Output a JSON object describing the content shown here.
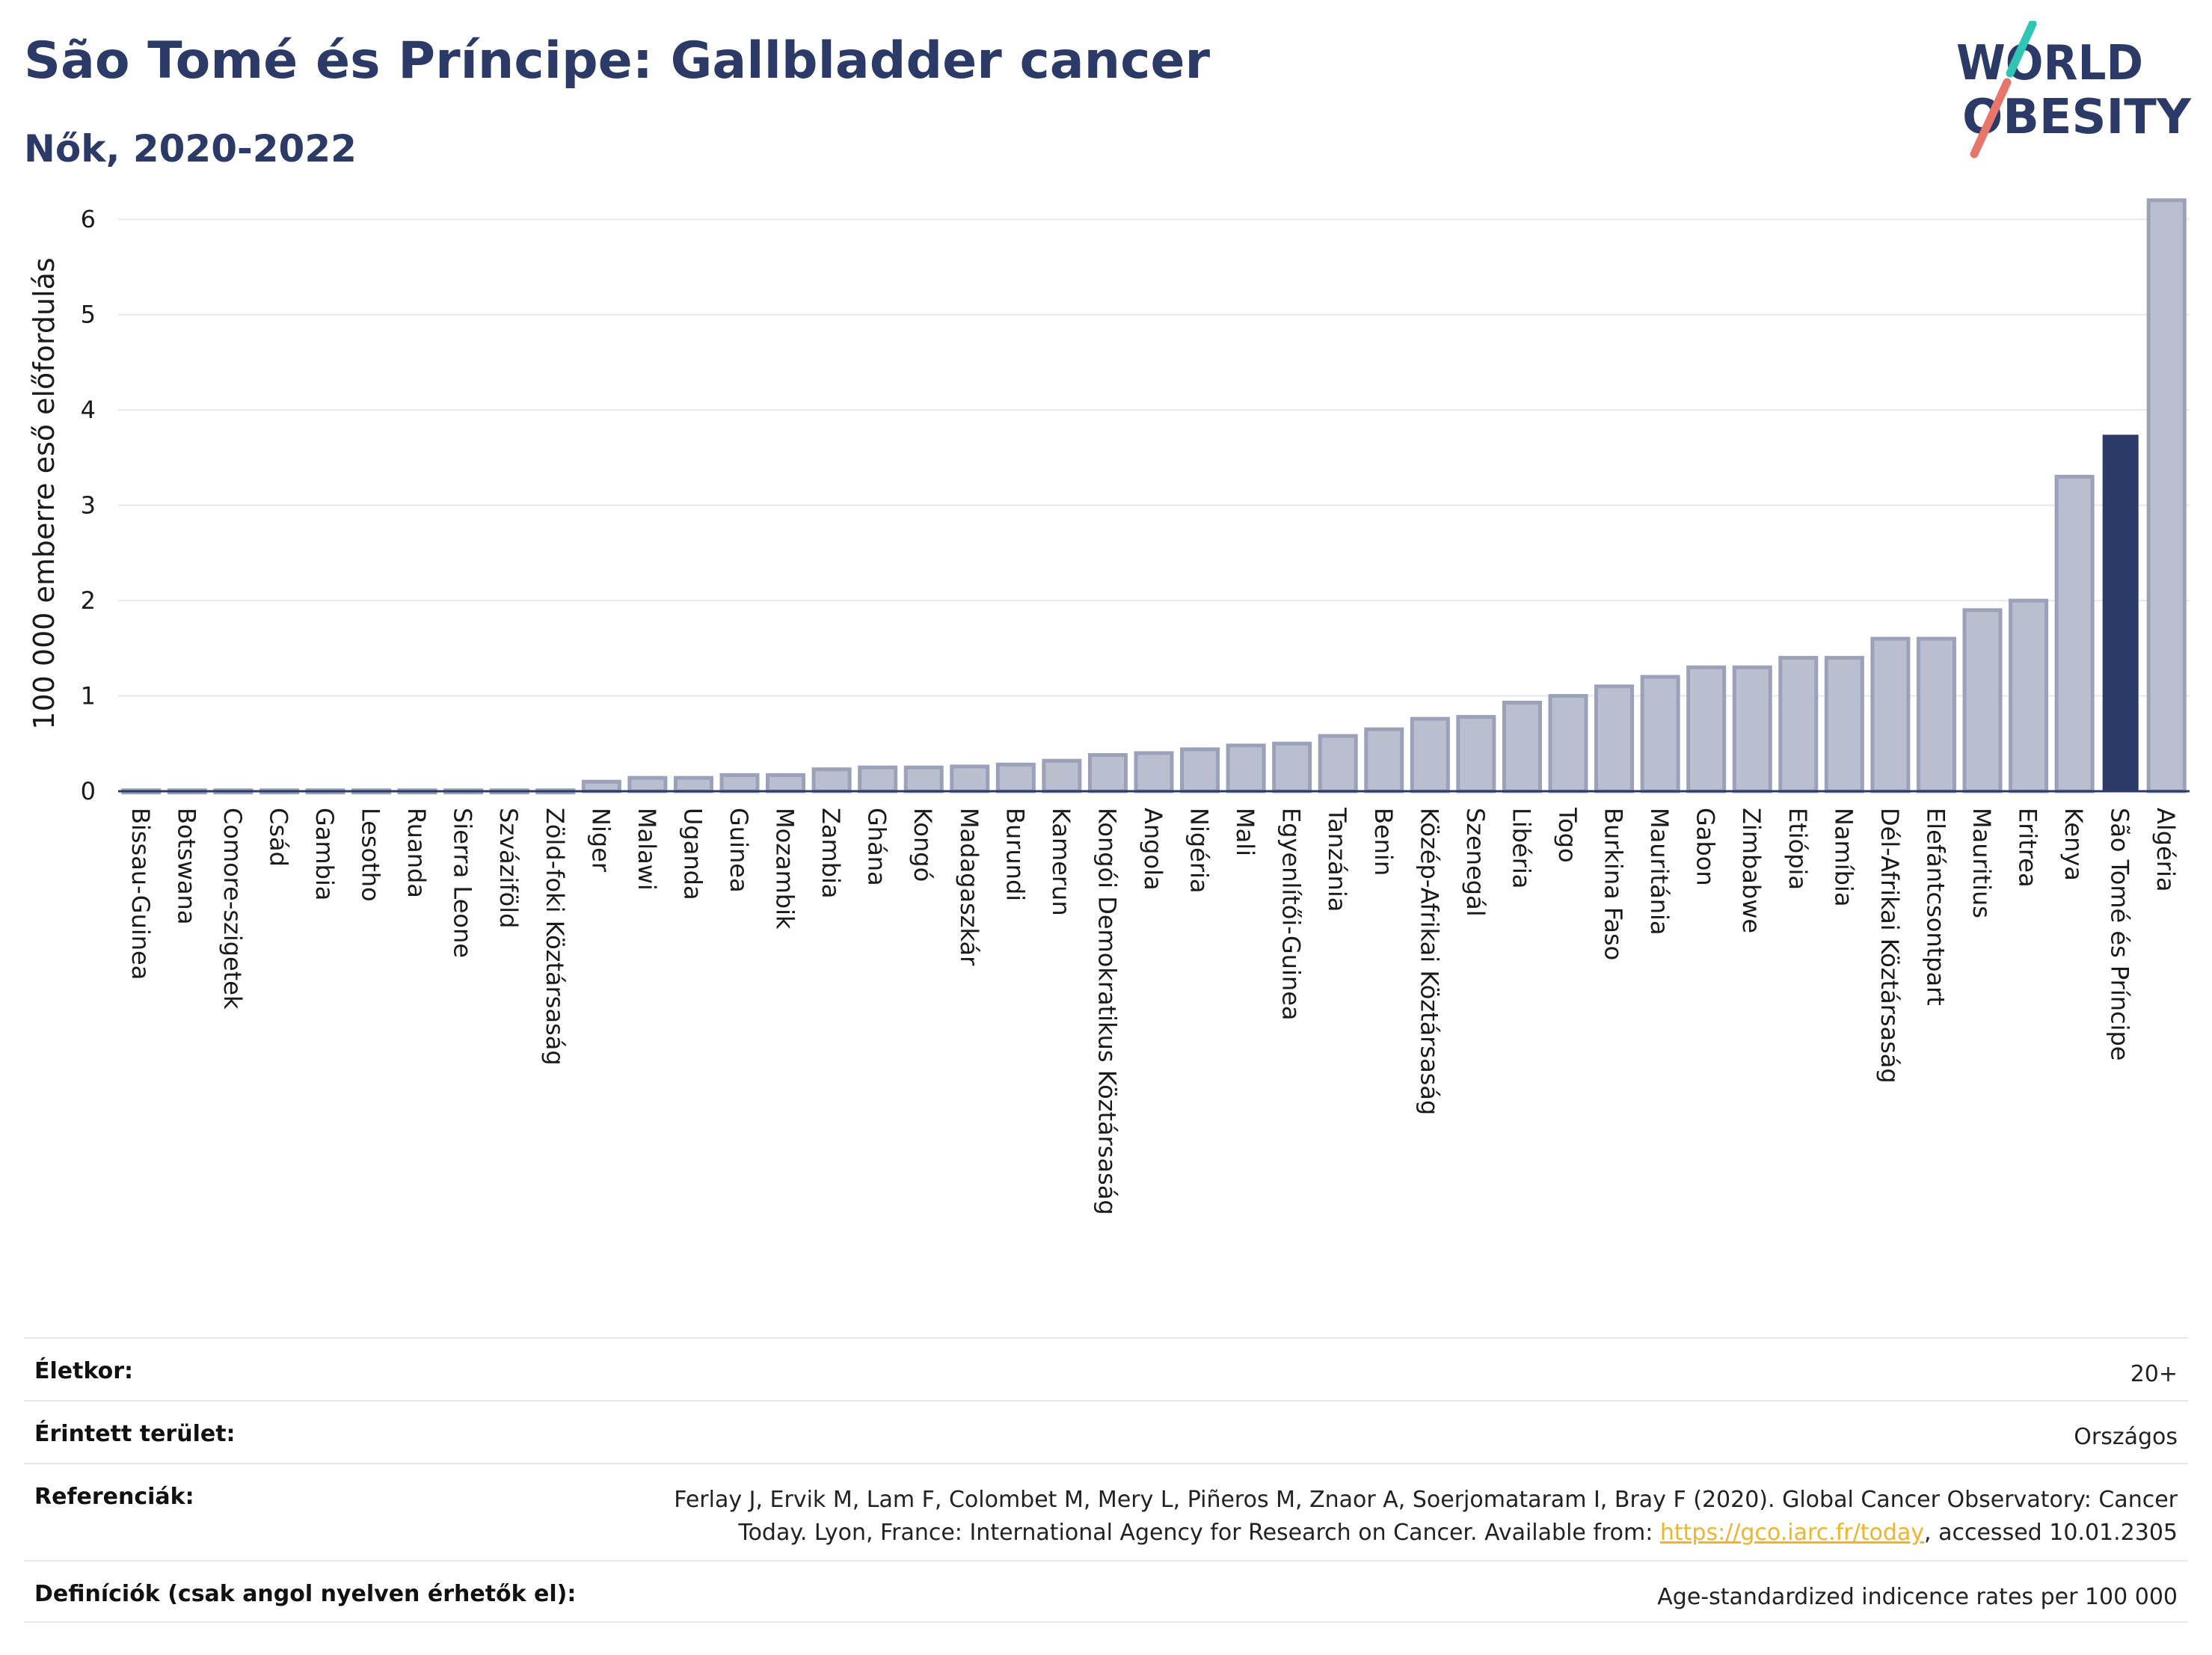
{
  "header": {
    "title": "São Tomé és Príncipe: Gallbladder cancer",
    "subtitle": "Nők, 2020-2022"
  },
  "logo": {
    "line1": "WORLD",
    "line2": "OBESITY",
    "colors": {
      "text": "#2b3a67",
      "slash_top": "#2ec4b6",
      "slash_bottom": "#e8756a"
    }
  },
  "colors": {
    "bar_default": "#b9bfcf",
    "bar_default_stroke": "#9aa1b8",
    "bar_highlight": "#2b3a67",
    "grid": "#e6e8ee",
    "axis_text": "#1a1a1a",
    "link": "#f0b429"
  },
  "chart_data": {
    "type": "bar",
    "title": "",
    "ylabel": "100 000 emberre eső előfordulás",
    "xlabel": "",
    "ylim": [
      0,
      6.3
    ],
    "yticks": [
      0,
      1,
      2,
      3,
      4,
      5,
      6
    ],
    "grid": true,
    "highlight": "São Tomé és Príncipe",
    "categories": [
      "Bissau-Guinea",
      "Botswana",
      "Comore-szigetek",
      "Csád",
      "Gambia",
      "Lesotho",
      "Ruanda",
      "Sierra Leone",
      "Szváziföld",
      "Zöld-foki Köztársaság",
      "Niger",
      "Malawi",
      "Uganda",
      "Guinea",
      "Mozambik",
      "Zambia",
      "Ghána",
      "Kongó",
      "Madagaszkár",
      "Burundi",
      "Kamerun",
      "Kongói Demokratikus Köztársaság",
      "Angola",
      "Nigéria",
      "Mali",
      "Egyenlítői-Guinea",
      "Tanzánia",
      "Benin",
      "Közép-Afrikai Köztársaság",
      "Szenegál",
      "Libéria",
      "Togo",
      "Burkina Faso",
      "Mauritánia",
      "Gabon",
      "Zimbabwe",
      "Etiópia",
      "Namíbia",
      "Dél-Afrikai Köztársaság",
      "Elefántcsontpart",
      "Mauritius",
      "Eritrea",
      "Kenya",
      "São Tomé és Príncipe",
      "Algéria"
    ],
    "values": [
      0.01,
      0.01,
      0.01,
      0.01,
      0.01,
      0.01,
      0.01,
      0.01,
      0.01,
      0.01,
      0.1,
      0.14,
      0.14,
      0.17,
      0.17,
      0.23,
      0.25,
      0.25,
      0.26,
      0.28,
      0.32,
      0.38,
      0.4,
      0.44,
      0.48,
      0.5,
      0.58,
      0.65,
      0.76,
      0.78,
      0.93,
      1.0,
      1.1,
      1.2,
      1.3,
      1.3,
      1.4,
      1.4,
      1.6,
      1.6,
      1.9,
      2.0,
      3.3,
      3.74,
      6.2
    ]
  },
  "meta": {
    "rows": [
      {
        "label": "Életkor:",
        "value": "20+"
      },
      {
        "label": "Érintett terület:",
        "value": "Országos"
      },
      {
        "label": "Referenciák:",
        "value_line1": "Ferlay J, Ervik M, Lam F, Colombet M, Mery L, Piñeros M, Znaor A, Soerjomataram I, Bray F (2020). Global Cancer Observatory: Cancer",
        "value_line2_pre": "Today. Lyon, France: International Agency for Research on Cancer. Available from: ",
        "link": "https://gco.iarc.fr/today",
        "value_line2_post": ", accessed 10.01.2305"
      },
      {
        "label": "Definíciók (csak angol nyelven érhetők el):",
        "value": "Age-standardized indicence rates per 100 000"
      }
    ]
  }
}
